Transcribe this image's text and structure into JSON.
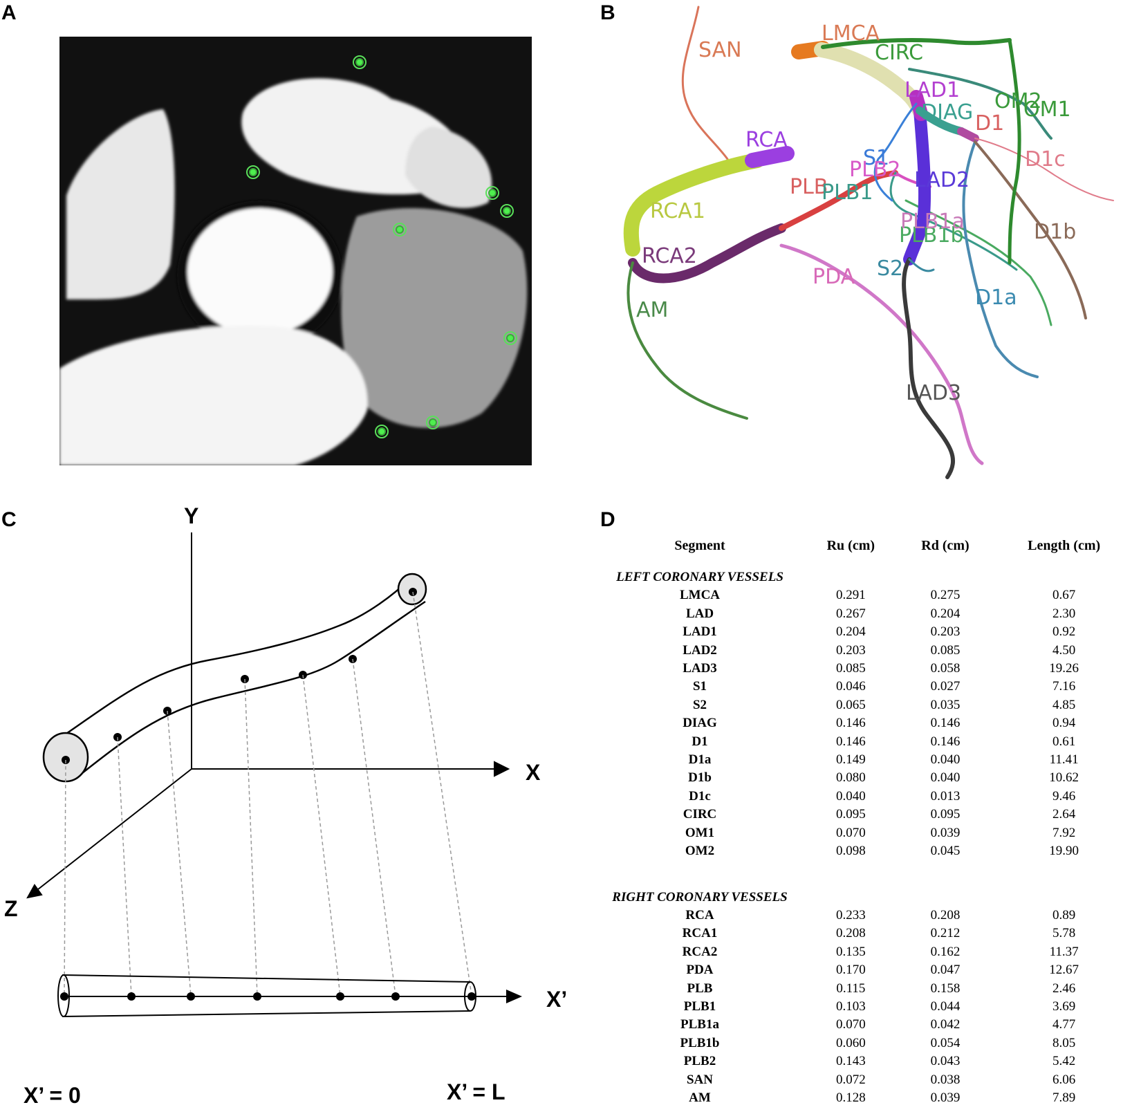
{
  "panels": {
    "a": {
      "letter": "A"
    },
    "b": {
      "letter": "B"
    },
    "c": {
      "letter": "C"
    },
    "d": {
      "letter": "D"
    }
  },
  "vessel_labels": [
    {
      "text": "SAN",
      "color": "#d97a55"
    },
    {
      "text": "LMCA",
      "color": "#d97a55"
    },
    {
      "text": "CIRC",
      "color": "#3a9a3a"
    },
    {
      "text": "OM2",
      "color": "#3a9a3a"
    },
    {
      "text": "OM1",
      "color": "#3a9a3a"
    },
    {
      "text": "RCA",
      "color": "#9b3fe0"
    },
    {
      "text": "LAD1",
      "color": "#b33fd0"
    },
    {
      "text": "DIAG",
      "color": "#3aa090"
    },
    {
      "text": "D1",
      "color": "#d86060"
    },
    {
      "text": "D1c",
      "color": "#e07b8a"
    },
    {
      "text": "S1",
      "color": "#3a7ad8"
    },
    {
      "text": "PLB2",
      "color": "#d85ac8"
    },
    {
      "text": "LAD2",
      "color": "#5a3ad8"
    },
    {
      "text": "PLB",
      "color": "#d86060"
    },
    {
      "text": "PLB1",
      "color": "#3a9a8a"
    },
    {
      "text": "RCA1",
      "color": "#b8c840"
    },
    {
      "text": "PLB1b",
      "color": "#4aaa60"
    },
    {
      "text": "PLB1a",
      "color": "#c87ab8"
    },
    {
      "text": "D1b",
      "color": "#8a6a58"
    },
    {
      "text": "RCA2",
      "color": "#7a3a7a"
    },
    {
      "text": "S2",
      "color": "#3a8aa0"
    },
    {
      "text": "PDA",
      "color": "#d86ab8"
    },
    {
      "text": "D1a",
      "color": "#3a8ab0"
    },
    {
      "text": "AM",
      "color": "#4a8a4a"
    },
    {
      "text": "LAD3",
      "color": "#555555"
    }
  ],
  "diagram": {
    "axis_y": "Y",
    "axis_x": "X",
    "axis_z": "Z",
    "axis_xprime": "X’",
    "xprime_zero": "X’ = 0",
    "xprime_l": "X’ = L"
  },
  "table": {
    "headers": [
      "Segment",
      "Ru (cm)",
      "Rd (cm)",
      "Length (cm)"
    ],
    "left_group": "LEFT CORONARY VESSELS",
    "left_rows": [
      [
        "LMCA",
        "0.291",
        "0.275",
        "0.67"
      ],
      [
        "LAD",
        "0.267",
        "0.204",
        "2.30"
      ],
      [
        "LAD1",
        "0.204",
        "0.203",
        "0.92"
      ],
      [
        "LAD2",
        "0.203",
        "0.085",
        "4.50"
      ],
      [
        "LAD3",
        "0.085",
        "0.058",
        "19.26"
      ],
      [
        "S1",
        "0.046",
        "0.027",
        "7.16"
      ],
      [
        "S2",
        "0.065",
        "0.035",
        "4.85"
      ],
      [
        "DIAG",
        "0.146",
        "0.146",
        "0.94"
      ],
      [
        "D1",
        "0.146",
        "0.146",
        "0.61"
      ],
      [
        "D1a",
        "0.149",
        "0.040",
        "11.41"
      ],
      [
        "D1b",
        "0.080",
        "0.040",
        "10.62"
      ],
      [
        "D1c",
        "0.040",
        "0.013",
        "9.46"
      ],
      [
        "CIRC",
        "0.095",
        "0.095",
        "2.64"
      ],
      [
        "OM1",
        "0.070",
        "0.039",
        "7.92"
      ],
      [
        "OM2",
        "0.098",
        "0.045",
        "19.90"
      ]
    ],
    "right_group": "RIGHT CORONARY VESSELS",
    "right_rows": [
      [
        "RCA",
        "0.233",
        "0.208",
        "0.89"
      ],
      [
        "RCA1",
        "0.208",
        "0.212",
        "5.78"
      ],
      [
        "RCA2",
        "0.135",
        "0.162",
        "11.37"
      ],
      [
        "PDA",
        "0.170",
        "0.047",
        "12.67"
      ],
      [
        "PLB",
        "0.115",
        "0.158",
        "2.46"
      ],
      [
        "PLB1",
        "0.103",
        "0.044",
        "3.69"
      ],
      [
        "PLB1a",
        "0.070",
        "0.042",
        "4.77"
      ],
      [
        "PLB1b",
        "0.060",
        "0.054",
        "8.05"
      ],
      [
        "PLB2",
        "0.143",
        "0.043",
        "5.42"
      ],
      [
        "SAN",
        "0.072",
        "0.038",
        "6.06"
      ],
      [
        "AM",
        "0.128",
        "0.039",
        "7.89"
      ]
    ]
  }
}
